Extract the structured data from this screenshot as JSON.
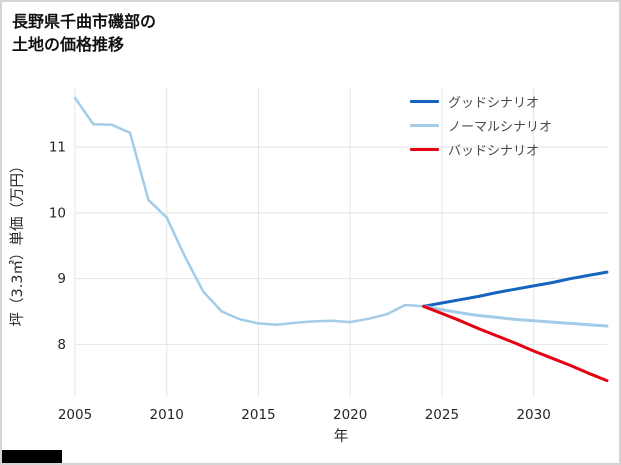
{
  "title": {
    "line1": "長野県千曲市磯部の",
    "line2": "土地の価格推移"
  },
  "chart_data": {
    "type": "line",
    "title": "長野県千曲市磯部の土地の価格推移",
    "xlabel": "年",
    "ylabel": "坪（3.3㎡）単価（万円）",
    "xlim": [
      2005,
      2034
    ],
    "ylim": [
      7.2,
      11.9
    ],
    "xticks": [
      2005,
      2010,
      2015,
      2020,
      2025,
      2030
    ],
    "yticks": [
      8,
      9,
      10,
      11
    ],
    "grid": true,
    "grid_color": "#e5e5e5",
    "tick_color": "#262626",
    "legend": {
      "position": "top-right",
      "items": [
        {
          "label": "グッドシナリオ",
          "color": "#1565c0"
        },
        {
          "label": "ノーマルシナリオ",
          "color": "#a3cce9"
        },
        {
          "label": "バッドシナリオ",
          "color": "#e60012"
        }
      ]
    },
    "series": [
      {
        "id": "history",
        "label": "",
        "color": "#a3cce9",
        "width": 2.5,
        "x": [
          2005,
          2006,
          2007,
          2008,
          2009,
          2010,
          2011,
          2012,
          2013,
          2014,
          2015,
          2016,
          2017,
          2018,
          2019,
          2020,
          2021,
          2022,
          2023,
          2024
        ],
        "y": [
          11.75,
          11.35,
          11.34,
          11.22,
          10.2,
          9.93,
          9.33,
          8.8,
          8.5,
          8.38,
          8.32,
          8.3,
          8.33,
          8.35,
          8.36,
          8.34,
          8.39,
          8.46,
          8.6,
          8.58
        ]
      },
      {
        "id": "good",
        "label": "グッドシナリオ",
        "color": "#1565c0",
        "width": 3,
        "x": [
          2024,
          2025,
          2026,
          2027,
          2028,
          2029,
          2030,
          2031,
          2032,
          2033,
          2034
        ],
        "y": [
          8.58,
          8.63,
          8.68,
          8.73,
          8.79,
          8.84,
          8.89,
          8.94,
          9.0,
          9.05,
          9.1
        ]
      },
      {
        "id": "normal",
        "label": "ノーマルシナリオ",
        "color": "#a3cce9",
        "width": 3,
        "x": [
          2024,
          2025,
          2026,
          2027,
          2028,
          2029,
          2030,
          2031,
          2032,
          2033,
          2034
        ],
        "y": [
          8.58,
          8.53,
          8.48,
          8.44,
          8.41,
          8.38,
          8.36,
          8.34,
          8.32,
          8.3,
          8.28
        ]
      },
      {
        "id": "bad",
        "label": "バッドシナリオ",
        "color": "#e60012",
        "width": 3,
        "x": [
          2024,
          2025,
          2026,
          2027,
          2028,
          2029,
          2030,
          2031,
          2032,
          2033,
          2034
        ],
        "y": [
          8.58,
          8.47,
          8.36,
          8.24,
          8.13,
          8.02,
          7.9,
          7.79,
          7.68,
          7.56,
          7.45
        ]
      }
    ]
  }
}
